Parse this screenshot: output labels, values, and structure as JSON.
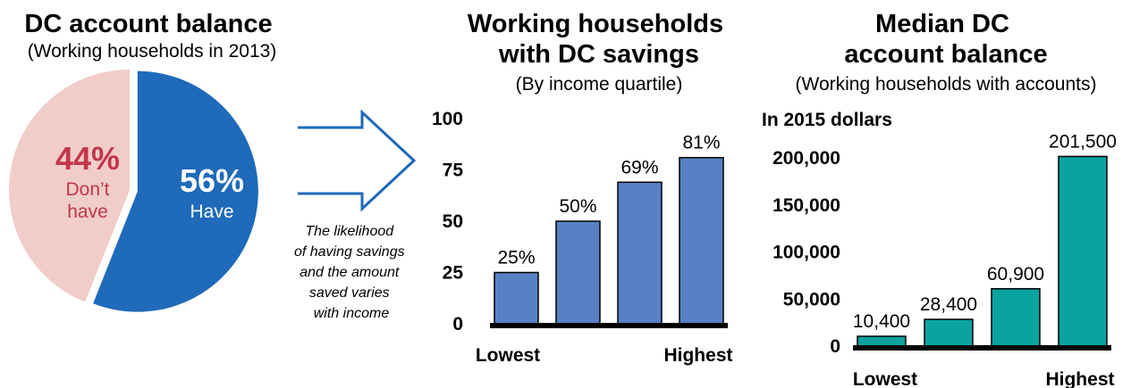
{
  "pie_panel": {
    "title": "DC account balance",
    "subtitle": "(Working households in 2013)"
  },
  "note": {
    "lines": [
      "The likelihood",
      "of having savings",
      "and the amount",
      "saved varies",
      "with income"
    ]
  },
  "bar1_panel": {
    "title_lines": [
      "Working households",
      "with DC savings"
    ],
    "subtitle": "(By income quartile)"
  },
  "bar2_panel": {
    "title_lines": [
      "Median DC",
      "account balance"
    ],
    "subtitle": "(Working households with accounts)",
    "unit_label": "In 2015 dollars"
  },
  "colors": {
    "have": "#1f6ab9",
    "dont_have": "#f0cdc9",
    "dont_have_text": "#c2374a",
    "bar1": "#5681c4",
    "bar2": "#0aa3a0",
    "arrow": "#1f6ab9"
  },
  "chart_data": [
    {
      "type": "pie",
      "title": "DC account balance",
      "subtitle": "(Working households in 2013)",
      "slices": [
        {
          "pct_label": "56%",
          "label": "Have",
          "value": 56
        },
        {
          "pct_label": "44%",
          "label_lines": [
            "Don’t",
            "have"
          ],
          "value": 44
        }
      ]
    },
    {
      "type": "bar",
      "title": "Working households with DC savings",
      "subtitle": "(By income quartile)",
      "categories": [
        "Lowest",
        "",
        "",
        "Highest"
      ],
      "values": [
        25,
        50,
        69,
        81
      ],
      "data_labels": [
        "25%",
        "50%",
        "69%",
        "81%"
      ],
      "ylim": [
        0,
        100
      ],
      "yticks": [
        {
          "value": 0,
          "label": "0"
        },
        {
          "value": 25,
          "label": "25"
        },
        {
          "value": 50,
          "label": "50"
        },
        {
          "value": 75,
          "label": "75"
        },
        {
          "value": 100,
          "label": "100"
        }
      ],
      "grid": false
    },
    {
      "type": "bar",
      "title": "Median DC account balance",
      "subtitle": "(Working households with accounts)",
      "ylabel": "In 2015 dollars",
      "categories": [
        "Lowest",
        "",
        "",
        "Highest"
      ],
      "values": [
        10400,
        28400,
        60900,
        201500
      ],
      "data_labels": [
        "10,400",
        "28,400",
        "60,900",
        "201,500"
      ],
      "ylim": [
        0,
        200000
      ],
      "yticks": [
        {
          "value": 0,
          "label": "0"
        },
        {
          "value": 50000,
          "label": "50,000"
        },
        {
          "value": 100000,
          "label": "100,000"
        },
        {
          "value": 150000,
          "label": "150,000"
        },
        {
          "value": 200000,
          "label": "200,000"
        }
      ],
      "grid": false
    }
  ]
}
